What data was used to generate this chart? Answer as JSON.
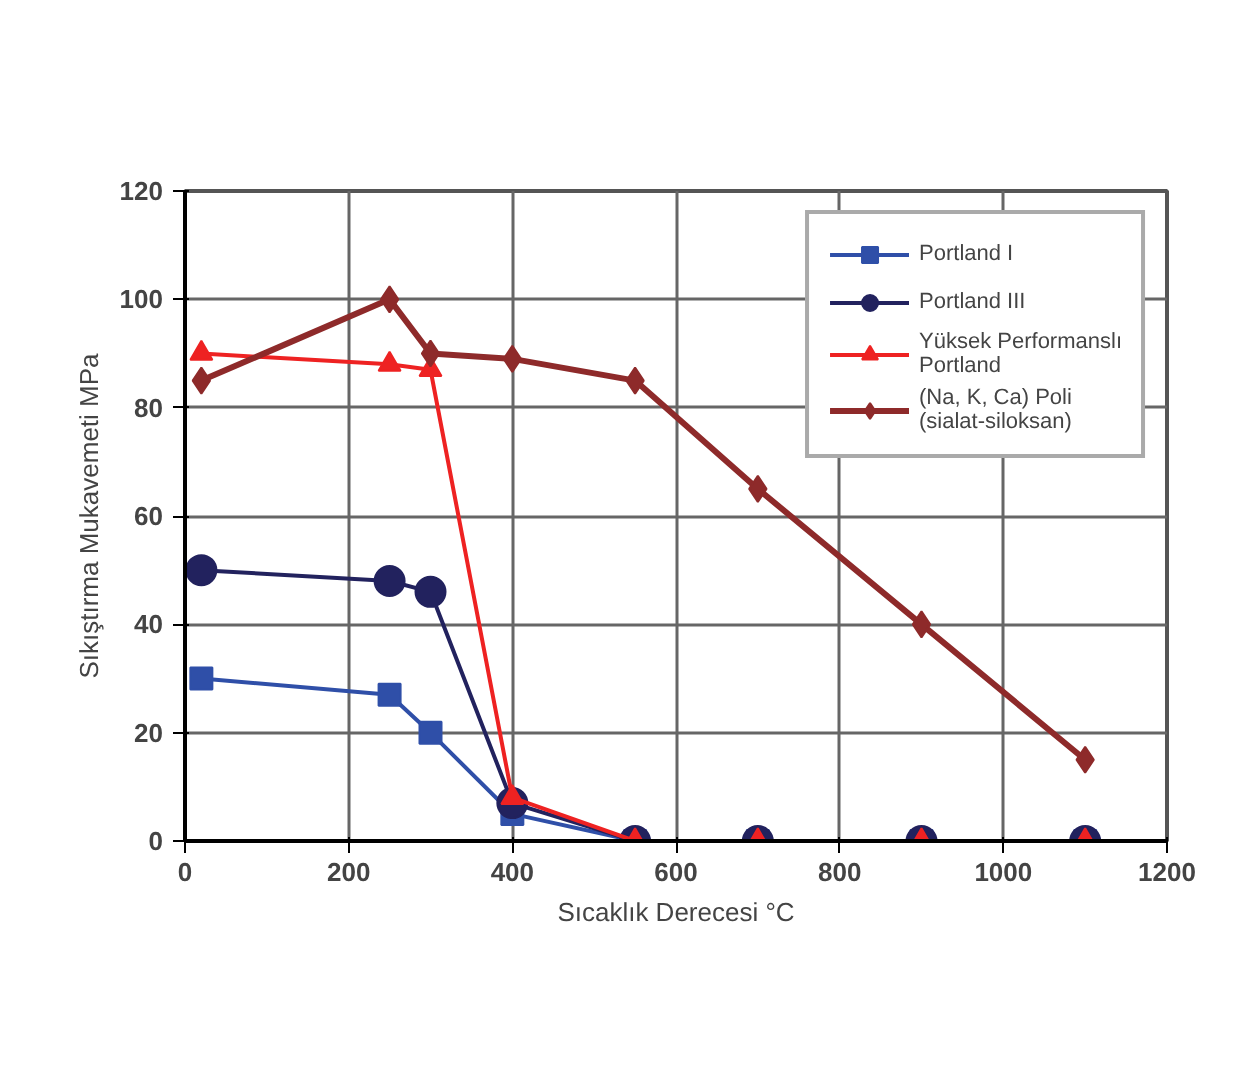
{
  "chart_data": {
    "type": "line",
    "xlabel": "Sıcaklık Derecesi °C",
    "ylabel": "Sıkıştırma Mukavemeti MPa",
    "x": [
      20,
      250,
      300,
      400,
      550,
      700,
      900,
      1100
    ],
    "series": [
      {
        "name": "Portland I",
        "color": "#2f4fa8",
        "marker": "square",
        "values": [
          30,
          27,
          20,
          5,
          0,
          0,
          0,
          0
        ]
      },
      {
        "name": "Portland III",
        "color": "#22225e",
        "marker": "circle",
        "values": [
          50,
          48,
          46,
          7,
          0,
          0,
          0,
          0
        ]
      },
      {
        "name": "Yüksek Performanslı Portland",
        "color": "#ee2222",
        "marker": "triangle",
        "values": [
          90,
          88,
          87,
          8,
          0,
          0,
          0,
          0
        ]
      },
      {
        "name": "(Na, K, Ca) Poli (sialat-siloksan)",
        "color": "#8e2a2a",
        "marker": "diamond",
        "values": [
          85,
          100,
          90,
          89,
          85,
          65,
          40,
          15
        ]
      }
    ],
    "xlim": [
      0,
      1200
    ],
    "ylim": [
      0,
      120
    ],
    "xticks": [
      0,
      200,
      400,
      600,
      800,
      1000,
      1200
    ],
    "yticks": [
      0,
      20,
      40,
      60,
      80,
      100,
      120
    ],
    "grid": true,
    "legend": "top right",
    "line_style": "solid"
  }
}
